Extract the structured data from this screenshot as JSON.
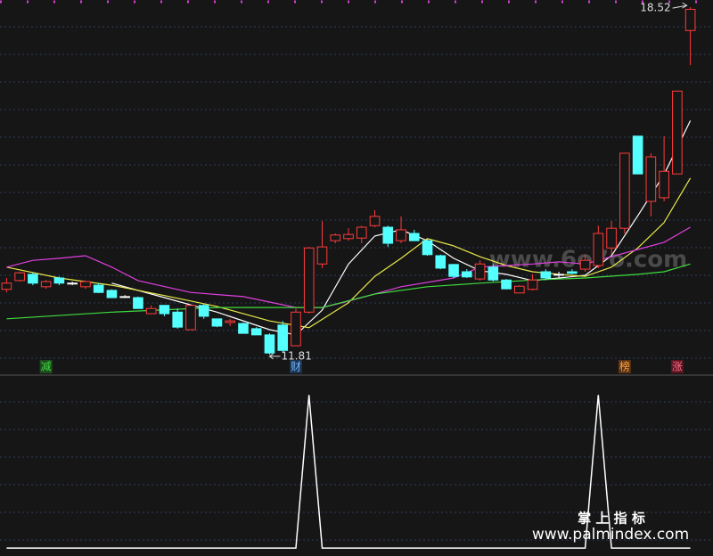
{
  "chart_data": [
    {
      "type": "candlestick",
      "open": [
        13.07,
        13.24,
        13.36,
        13.12,
        13.29,
        13.19,
        13.12,
        13.15,
        13.05,
        12.93,
        12.91,
        12.6,
        12.76,
        12.63,
        12.29,
        12.76,
        12.5,
        12.43,
        12.41,
        12.31,
        12.19,
        12.38,
        11.98,
        12.63,
        13.56,
        14.01,
        14.05,
        14.06,
        14.3,
        14.27,
        14.01,
        14.15,
        14.01,
        13.72,
        13.55,
        13.41,
        13.27,
        13.5,
        13.25,
        13.0,
        13.07,
        13.41,
        13.36,
        13.41,
        13.46,
        13.53,
        13.87,
        14.25,
        16.03,
        14.77,
        14.84,
        15.3,
        18.07
      ],
      "close": [
        13.19,
        13.39,
        13.19,
        13.22,
        13.19,
        13.18,
        13.22,
        13.01,
        12.91,
        12.92,
        12.7,
        12.7,
        12.6,
        12.34,
        12.76,
        12.55,
        12.36,
        12.46,
        12.22,
        12.19,
        11.84,
        11.89,
        12.63,
        13.87,
        13.89,
        14.12,
        14.13,
        14.27,
        14.48,
        13.96,
        14.22,
        14.01,
        13.74,
        13.48,
        13.32,
        13.31,
        13.56,
        13.25,
        13.08,
        13.13,
        13.25,
        13.29,
        13.35,
        13.38,
        13.63,
        14.15,
        14.25,
        15.7,
        15.3,
        15.63,
        15.35,
        16.9,
        18.48
      ],
      "high": [
        13.29,
        13.41,
        13.39,
        13.25,
        13.32,
        13.22,
        13.24,
        13.19,
        13.07,
        12.96,
        12.93,
        12.76,
        12.76,
        12.7,
        12.76,
        12.79,
        12.5,
        12.5,
        12.43,
        12.34,
        12.22,
        12.46,
        12.7,
        13.89,
        14.39,
        14.15,
        14.25,
        14.3,
        14.6,
        14.3,
        14.48,
        14.22,
        14.05,
        13.74,
        13.56,
        13.46,
        13.63,
        13.56,
        13.27,
        13.15,
        13.36,
        13.46,
        13.41,
        13.46,
        13.74,
        14.3,
        14.39,
        15.7,
        16.03,
        15.7,
        16.03,
        16.9,
        18.52
      ],
      "low": [
        13.01,
        13.22,
        13.15,
        13.08,
        13.15,
        13.15,
        13.08,
        13.0,
        12.91,
        12.91,
        12.7,
        12.6,
        12.55,
        12.31,
        12.29,
        12.5,
        12.34,
        12.36,
        12.22,
        12.19,
        11.81,
        11.84,
        11.98,
        12.6,
        13.48,
        13.96,
        14.01,
        13.96,
        14.27,
        13.89,
        13.96,
        14.01,
        13.72,
        13.46,
        13.29,
        13.29,
        13.24,
        13.22,
        13.07,
        13.0,
        13.05,
        13.25,
        13.29,
        13.36,
        13.41,
        13.48,
        13.74,
        14.15,
        15.3,
        14.48,
        14.77,
        15.3,
        17.4
      ],
      "up_color": "#ff3b3b",
      "down_color": "#54ffff",
      "flat_color": "#ffffff",
      "series": [
        {
          "color": "#ffffff",
          "x": [
            8,
            12,
            16,
            20,
            22,
            24,
            26,
            28,
            30,
            32,
            34,
            36,
            38,
            40,
            42,
            44,
            46,
            48,
            50,
            52
          ],
          "values": [
            13.19,
            12.91,
            12.63,
            12.29,
            12.19,
            12.67,
            13.56,
            14.1,
            14.22,
            14.01,
            13.67,
            13.43,
            13.36,
            13.24,
            13.29,
            13.34,
            13.72,
            14.49,
            15.29,
            16.33
          ]
        },
        {
          "color": "#e8e84a",
          "x": [
            0,
            4,
            8,
            12,
            16,
            20,
            23,
            26,
            28,
            30,
            32,
            34,
            36,
            38,
            40,
            42,
            44,
            46,
            48,
            50,
            52
          ],
          "values": [
            13.5,
            13.29,
            13.15,
            12.95,
            12.74,
            12.46,
            12.33,
            12.81,
            13.32,
            13.67,
            14.05,
            13.91,
            13.7,
            13.53,
            13.41,
            13.36,
            13.32,
            13.5,
            13.87,
            14.36,
            15.22
          ]
        },
        {
          "color": "#e040e0",
          "x": [
            0,
            2,
            4,
            6,
            8,
            10,
            14,
            18,
            22,
            24,
            26,
            30,
            34,
            36,
            38,
            40,
            42,
            44,
            46,
            48,
            50,
            52
          ],
          "values": [
            13.5,
            13.63,
            13.67,
            13.72,
            13.5,
            13.24,
            13.01,
            12.93,
            12.72,
            12.72,
            12.84,
            13.12,
            13.29,
            13.5,
            13.53,
            13.56,
            13.6,
            13.56,
            13.7,
            13.84,
            13.98,
            14.27
          ]
        },
        {
          "color": "#3fdc3f",
          "x": [
            0,
            8,
            16,
            24,
            28,
            32,
            36,
            40,
            44,
            48,
            50,
            52
          ],
          "values": [
            12.5,
            12.63,
            12.72,
            12.72,
            12.98,
            13.12,
            13.19,
            13.25,
            13.29,
            13.36,
            13.41,
            13.56
          ]
        }
      ],
      "annotations": [
        {
          "text": "减",
          "x": 3,
          "color": "#3fdc3f",
          "background": "#1f4a1f"
        },
        {
          "text": "财",
          "x": 22,
          "color": "#6fb8ff",
          "background": "#1c3350"
        },
        {
          "text": "榜",
          "x": 47,
          "color": "#ffa040",
          "background": "#5a3414"
        },
        {
          "text": "涨",
          "x": 51,
          "color": "#ff6f8a",
          "background": "#5a1420"
        }
      ],
      "high_label": 18.52,
      "low_label": 11.81,
      "ylim": [
        11.43,
        18.66
      ],
      "grid": true
    },
    {
      "type": "line",
      "color": "#ffffff",
      "values": [
        0,
        0,
        0,
        0,
        0,
        0,
        0,
        0,
        0,
        0,
        0,
        0,
        0,
        0,
        0,
        0,
        0,
        0,
        0,
        0,
        0,
        0,
        0,
        1,
        0,
        0,
        0,
        0,
        0,
        0,
        0,
        0,
        0,
        0,
        0,
        0,
        0,
        0,
        0,
        0,
        0,
        0,
        0,
        0,
        0,
        1,
        0,
        0,
        0,
        0,
        0,
        0,
        0
      ],
      "ylim": [
        -0.04,
        1.13
      ],
      "grid": true
    }
  ],
  "watermark": "www.6o7o.com",
  "footer": {
    "title": "掌 上 指 标",
    "url": "www.palmindex.com"
  }
}
